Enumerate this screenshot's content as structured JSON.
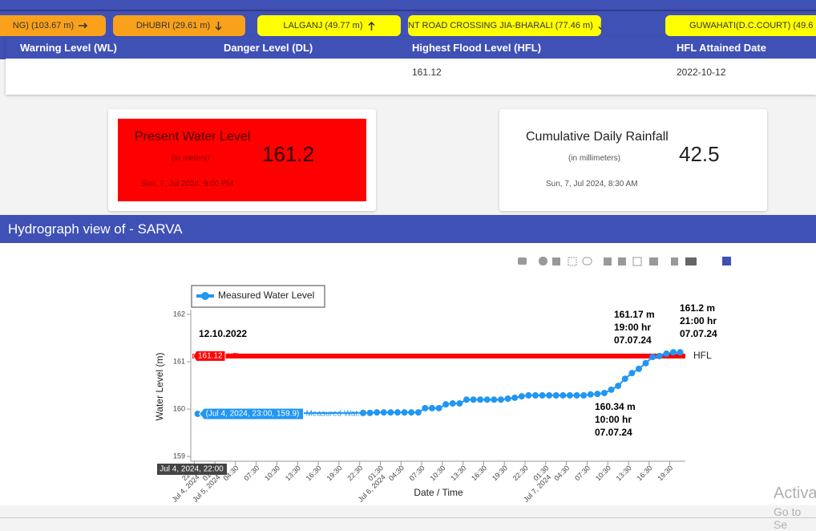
{
  "ticker": [
    "NG) (103.67 m)",
    "DHUBRI (29.61 m)",
    "LALGANJ (49.77 m)",
    "NT ROAD CROSSING JIA-BHARALI (77.46 m)",
    "GUWAHATI(D.C.COURT) (49.6"
  ],
  "table": {
    "headers": [
      "Warning Level (WL)",
      "Danger Level (DL)",
      "Highest Flood Level (HFL)",
      "HFL Attained Date"
    ],
    "row": {
      "hfl": 161.12,
      "hfl_date": "2022-10-12"
    }
  },
  "cards": [
    {
      "title": "Present Water Level",
      "unit": "(in meters)",
      "value": 161.2,
      "time": "Sun, 7, Jul 2024, 9:00 PM"
    },
    {
      "title": "Cumulative Daily Rainfall",
      "unit": "(in millimeters)",
      "value": 42.5,
      "time": "Sun, 7, Jul 2024, 8:30 AM"
    }
  ],
  "section_title": "Hydrograph view of - SARVA",
  "chart_data": {
    "type": "line",
    "xlabel": "Date / Time",
    "ylabel": "Water Level (m)",
    "legend": "top-left",
    "grid": false,
    "series": [
      {
        "name": "Measured Water Level",
        "color": "#2196f3",
        "x": [
          "2024-07-04 23:00",
          "2024-07-05 23:00",
          "2024-07-06 00:00",
          "2024-07-06 01:00",
          "2024-07-06 02:00",
          "2024-07-06 03:00",
          "2024-07-06 04:00",
          "2024-07-06 05:00",
          "2024-07-06 06:00",
          "2024-07-06 07:00",
          "2024-07-06 08:00",
          "2024-07-06 09:00",
          "2024-07-06 10:00",
          "2024-07-06 11:00",
          "2024-07-06 12:00",
          "2024-07-06 13:00",
          "2024-07-06 14:00",
          "2024-07-06 15:00",
          "2024-07-06 16:00",
          "2024-07-06 17:00",
          "2024-07-06 18:00",
          "2024-07-06 19:00",
          "2024-07-06 20:00",
          "2024-07-06 21:00",
          "2024-07-06 22:00",
          "2024-07-06 23:00",
          "2024-07-07 00:00",
          "2024-07-07 01:00",
          "2024-07-07 02:00",
          "2024-07-07 03:00",
          "2024-07-07 04:00",
          "2024-07-07 05:00",
          "2024-07-07 06:00",
          "2024-07-07 07:00",
          "2024-07-07 08:00",
          "2024-07-07 09:00",
          "2024-07-07 10:00",
          "2024-07-07 11:00",
          "2024-07-07 12:00",
          "2024-07-07 13:00",
          "2024-07-07 14:00",
          "2024-07-07 15:00",
          "2024-07-07 16:00",
          "2024-07-07 17:00",
          "2024-07-07 18:00",
          "2024-07-07 19:00",
          "2024-07-07 20:00",
          "2024-07-07 21:00"
        ],
        "values": [
          159.9,
          159.92,
          159.92,
          159.93,
          159.93,
          159.93,
          159.93,
          159.93,
          159.93,
          159.93,
          160.02,
          160.02,
          160.02,
          160.1,
          160.12,
          160.12,
          160.2,
          160.2,
          160.2,
          160.2,
          160.2,
          160.2,
          160.22,
          160.24,
          160.27,
          160.29,
          160.29,
          160.29,
          160.29,
          160.29,
          160.29,
          160.29,
          160.29,
          160.29,
          160.31,
          160.32,
          160.34,
          160.41,
          160.49,
          160.64,
          160.76,
          160.85,
          160.97,
          161.1,
          161.12,
          161.17,
          161.2,
          161.2
        ]
      }
    ],
    "xlim": [
      "2024-07-04 22:00",
      "2024-07-07 21:45"
    ],
    "ylim": [
      158.9,
      162.1
    ],
    "yticks": [
      159,
      160,
      161,
      162
    ],
    "xticks": [
      {
        "value": "2024-07-04 22:30",
        "label": "22:30"
      },
      {
        "value": "2024-07-05 01:30",
        "label": "01:30"
      },
      {
        "value": "2024-07-05 04:30",
        "label": "04:30"
      },
      {
        "value": "2024-07-05 07:30",
        "label": "07:30"
      },
      {
        "value": "2024-07-05 10:30",
        "label": "10:30"
      },
      {
        "value": "2024-07-05 13:30",
        "label": "13:30"
      },
      {
        "value": "2024-07-05 16:30",
        "label": "16:30"
      },
      {
        "value": "2024-07-05 19:30",
        "label": "19:30"
      },
      {
        "value": "2024-07-05 22:30",
        "label": "22:30"
      },
      {
        "value": "2024-07-06 01:30",
        "label": "01:30"
      },
      {
        "value": "2024-07-06 04:30",
        "label": "04:30"
      },
      {
        "value": "2024-07-06 07:30",
        "label": "07:30"
      },
      {
        "value": "2024-07-06 10:30",
        "label": "10:30"
      },
      {
        "value": "2024-07-06 13:30",
        "label": "13:30"
      },
      {
        "value": "2024-07-06 16:30",
        "label": "16:30"
      },
      {
        "value": "2024-07-06 19:30",
        "label": "19:30"
      },
      {
        "value": "2024-07-06 22:30",
        "label": "22:30"
      },
      {
        "value": "2024-07-07 01:30",
        "label": "01:30"
      },
      {
        "value": "2024-07-07 04:30",
        "label": "04:30"
      },
      {
        "value": "2024-07-07 07:30",
        "label": "07:30"
      },
      {
        "value": "2024-07-07 10:30",
        "label": "10:30"
      },
      {
        "value": "2024-07-07 13:30",
        "label": "13:30"
      },
      {
        "value": "2024-07-07 16:30",
        "label": "16:30"
      },
      {
        "value": "2024-07-07 19:30",
        "label": "19:30"
      }
    ],
    "xtick_dates": [
      {
        "value": "2024-07-04 22:30",
        "label": "Jul 4, 2024"
      },
      {
        "value": "2024-07-05 01:30",
        "label": "Jul 5, 2024"
      },
      {
        "value": "2024-07-06 01:30",
        "label": "Jul 6, 2024"
      },
      {
        "value": "2024-07-07 01:30",
        "label": "Jul 7, 2024"
      }
    ],
    "hfl": {
      "value": 161.12,
      "name": "HFL",
      "color": "#ff0000",
      "date": "12.10.2022"
    },
    "annotations": [
      [
        "161.17 m",
        "19:00 hr",
        "07.07.24"
      ],
      [
        "161.2 m",
        "21:00 hr",
        "07.07.24"
      ],
      [
        "160.34 m",
        "10:00 hr",
        "07.07.24"
      ]
    ],
    "hover": {
      "point_label": "(Jul 4, 2024, 23:00, 159.9)",
      "series_label": "Measured Wat...",
      "x_label": "Jul 4, 2024, 22:00"
    }
  },
  "watermark": [
    "Activa",
    "Go to Se"
  ]
}
